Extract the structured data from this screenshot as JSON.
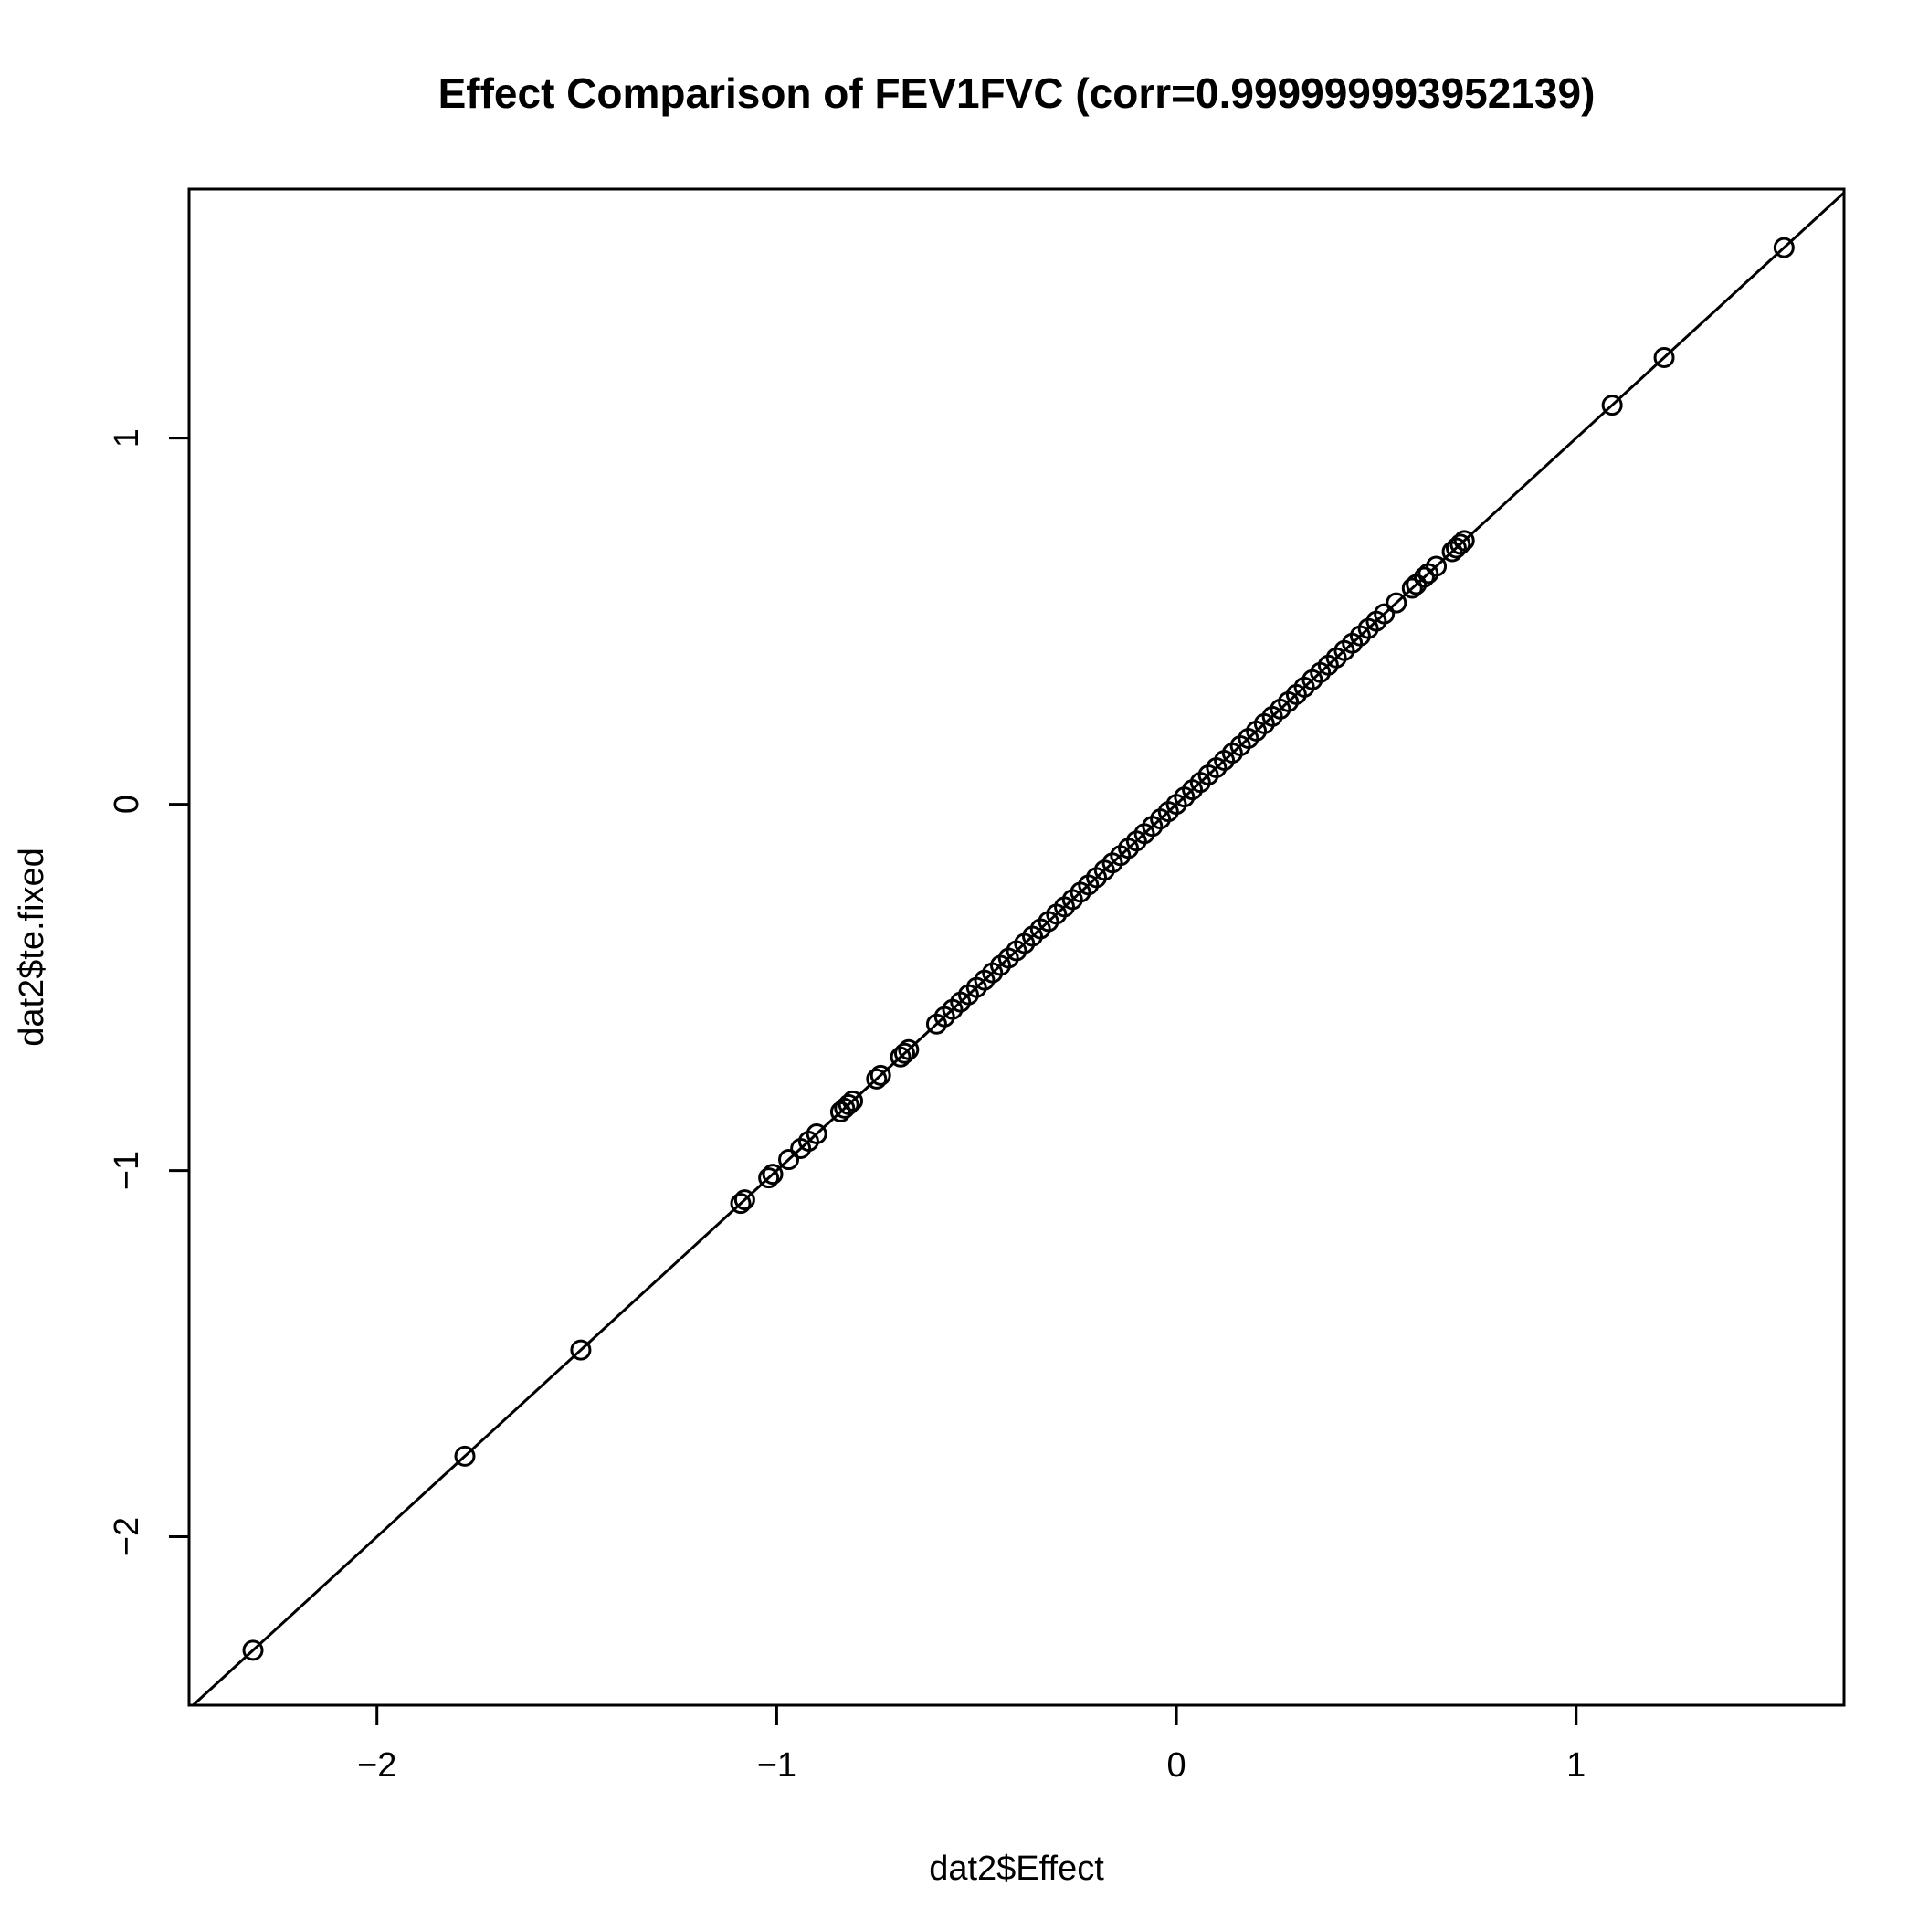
{
  "chart_data": {
    "type": "scatter",
    "title": "Effect Comparison of FEV1FVC (corr=0.999999993952139)",
    "xlabel": "dat2$Effect",
    "ylabel": "dat2$te.fixed",
    "xlim": [
      -2.47,
      1.67
    ],
    "ylim": [
      -2.46,
      1.68
    ],
    "xticks": [
      -2,
      -1,
      0,
      1
    ],
    "xtick_labels": [
      "−2",
      "−1",
      "0",
      "1"
    ],
    "yticks": [
      -2,
      -1,
      0,
      1
    ],
    "ytick_labels": [
      "−2",
      "−1",
      "0",
      "1"
    ],
    "grid": false,
    "reference_line": {
      "intercept": 0,
      "slope": 1
    },
    "x": [
      -2.31,
      -1.78,
      -1.49,
      -1.09,
      -1.08,
      -1.02,
      -1.01,
      -0.97,
      -0.94,
      -0.92,
      -0.9,
      -0.84,
      -0.83,
      -0.82,
      -0.81,
      -0.75,
      -0.74,
      -0.69,
      -0.68,
      -0.67,
      -0.6,
      -0.58,
      -0.56,
      -0.54,
      -0.52,
      -0.5,
      -0.48,
      -0.46,
      -0.44,
      -0.42,
      -0.4,
      -0.38,
      -0.36,
      -0.34,
      -0.32,
      -0.3,
      -0.28,
      -0.26,
      -0.24,
      -0.22,
      -0.2,
      -0.18,
      -0.16,
      -0.14,
      -0.12,
      -0.1,
      -0.08,
      -0.06,
      -0.04,
      -0.02,
      0.0,
      0.02,
      0.04,
      0.06,
      0.08,
      0.1,
      0.12,
      0.14,
      0.16,
      0.18,
      0.2,
      0.22,
      0.24,
      0.26,
      0.28,
      0.3,
      0.32,
      0.34,
      0.36,
      0.38,
      0.4,
      0.42,
      0.44,
      0.46,
      0.48,
      0.5,
      0.52,
      0.55,
      0.59,
      0.6,
      0.62,
      0.63,
      0.65,
      0.69,
      0.7,
      0.71,
      0.72,
      1.09,
      1.22,
      1.52
    ],
    "y": [
      -2.31,
      -1.78,
      -1.49,
      -1.09,
      -1.08,
      -1.02,
      -1.01,
      -0.97,
      -0.94,
      -0.92,
      -0.9,
      -0.84,
      -0.83,
      -0.82,
      -0.81,
      -0.75,
      -0.74,
      -0.69,
      -0.68,
      -0.67,
      -0.6,
      -0.58,
      -0.56,
      -0.54,
      -0.52,
      -0.5,
      -0.48,
      -0.46,
      -0.44,
      -0.42,
      -0.4,
      -0.38,
      -0.36,
      -0.34,
      -0.32,
      -0.3,
      -0.28,
      -0.26,
      -0.24,
      -0.22,
      -0.2,
      -0.18,
      -0.16,
      -0.14,
      -0.12,
      -0.1,
      -0.08,
      -0.06,
      -0.04,
      -0.02,
      0.0,
      0.02,
      0.04,
      0.06,
      0.08,
      0.1,
      0.12,
      0.14,
      0.16,
      0.18,
      0.2,
      0.22,
      0.24,
      0.26,
      0.28,
      0.3,
      0.32,
      0.34,
      0.36,
      0.38,
      0.4,
      0.42,
      0.44,
      0.46,
      0.48,
      0.5,
      0.52,
      0.55,
      0.59,
      0.6,
      0.62,
      0.63,
      0.65,
      0.69,
      0.7,
      0.71,
      0.72,
      1.09,
      1.22,
      1.52
    ]
  }
}
